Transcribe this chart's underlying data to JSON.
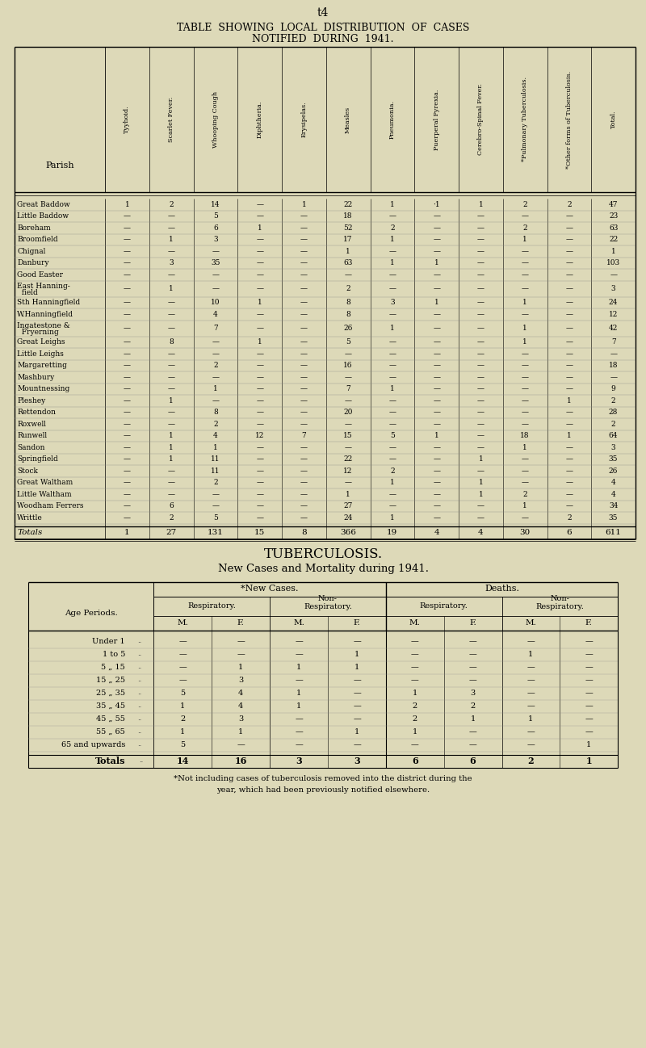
{
  "bg_color": "#ddd9b8",
  "page_number": "t4",
  "title1": "TABLE  SHOWING  LOCAL  DISTRIBUTION  OF  CASES",
  "title2": "NOTIFIED  DURING  1941.",
  "tb_title1": "TUBERCULOSIS.",
  "tb_title2": "New Cases and Mortality during 1941.",
  "footnote1": "*Not including cases of tuberculosis removed into the district during the",
  "footnote2": "year, which had been previously notified elsewhere.",
  "col_headers": [
    "Tyyhoid.",
    "Scarlet Fever.",
    "Whooping Cough",
    "Diphtheria.",
    "Erysipelas.",
    "Measles",
    "Pneumonia.",
    "Puerperal Pyrexia.",
    "Cerebro-Spinal Fever.",
    "*Pulmonary Tuberculosis.",
    "*Other forms of Tuberculosis.",
    "Total."
  ],
  "main_rows": [
    [
      "Great Baddow",
      "1",
      "2",
      "14",
      "—",
      "1",
      "22",
      "1",
      "·1",
      "1",
      "2",
      "2",
      "47"
    ],
    [
      "Little Baddow",
      "—",
      "—",
      "5",
      "—",
      "—",
      "18",
      "—",
      "—",
      "—",
      "—",
      "—",
      "23"
    ],
    [
      "Boreham",
      "—",
      "—",
      "6",
      "1",
      "—",
      "52",
      "2",
      "—",
      "—",
      "2",
      "—",
      "63"
    ],
    [
      "Broomfield",
      "—",
      "1",
      "3",
      "—",
      "—",
      "17",
      "1",
      "—",
      "—",
      "1",
      "—",
      "22"
    ],
    [
      "Chignal",
      "—",
      "—",
      "—",
      "—",
      "—",
      "1",
      "—",
      "—",
      "—",
      "—",
      "—",
      "1"
    ],
    [
      "Danbury",
      "—",
      "3",
      "35",
      "—",
      "—",
      "63",
      "1",
      "1",
      "—",
      "—",
      "—",
      "103"
    ],
    [
      "Good Easter",
      "—",
      "—",
      "—",
      "—",
      "—",
      "—",
      "—",
      "—",
      "—",
      "—",
      "—",
      "—"
    ],
    [
      "East Hanning-",
      "—",
      "1",
      "—",
      "—",
      "—",
      "2",
      "—",
      "—",
      "—",
      "—",
      "—",
      "3"
    ],
    [
      "Sth Hanningfield",
      "—",
      "—",
      "10",
      "1",
      "—",
      "8",
      "3",
      "1",
      "—",
      "1",
      "—",
      "24"
    ],
    [
      "W.Hanningfield",
      "—",
      "—",
      "4",
      "—",
      "—",
      "8",
      "—",
      "—",
      "—",
      "—",
      "—",
      "12"
    ],
    [
      "Ingatestone &",
      "—",
      "—",
      "7",
      "—",
      "—",
      "26",
      "1",
      "—",
      "—",
      "1",
      "—",
      "42"
    ],
    [
      "Great Leighs",
      "—",
      "8",
      "—",
      "1",
      "—",
      "5",
      "—",
      "—",
      "—",
      "1",
      "—",
      "7"
    ],
    [
      "Little Leighs",
      "—",
      "—",
      "—",
      "—",
      "—",
      "—",
      "—",
      "—",
      "—",
      "—",
      "—",
      "—"
    ],
    [
      "Margaretting",
      "—",
      "—",
      "2",
      "—",
      "—",
      "16",
      "—",
      "—",
      "—",
      "—",
      "—",
      "18"
    ],
    [
      "Mashbury",
      "—",
      "—",
      "—",
      "—",
      "—",
      "—",
      "—",
      "—",
      "—",
      "—",
      "—",
      "—"
    ],
    [
      "Mountnessing",
      "—",
      "—",
      "1",
      "—",
      "—",
      "7",
      "1",
      "—",
      "—",
      "—",
      "—",
      "9"
    ],
    [
      "Pleshey",
      "—",
      "1",
      "—",
      "—",
      "—",
      "—",
      "—",
      "—",
      "—",
      "—",
      "1",
      "2"
    ],
    [
      "Rettendon",
      "—",
      "—",
      "8",
      "—",
      "—",
      "20",
      "—",
      "—",
      "—",
      "—",
      "—",
      "28"
    ],
    [
      "Roxwell",
      "—",
      "—",
      "2",
      "—",
      "—",
      "—",
      "—",
      "—",
      "—",
      "—",
      "—",
      "2"
    ],
    [
      "Runwell",
      "—",
      "1",
      "4",
      "12",
      "7",
      "15",
      "5",
      "1",
      "—",
      "18",
      "1",
      "64"
    ],
    [
      "Sandon",
      "—",
      "1",
      "1",
      "—",
      "—",
      "—",
      "—",
      "—",
      "—",
      "1",
      "—",
      "3"
    ],
    [
      "Springfield",
      "—",
      "1",
      "11",
      "—",
      "—",
      "22",
      "—",
      "—",
      "1",
      "—",
      "—",
      "35"
    ],
    [
      "Stock",
      "—",
      "—",
      "11",
      "—",
      "—",
      "12",
      "2",
      "—",
      "—",
      "—",
      "—",
      "26"
    ],
    [
      "Great Waltham",
      "—",
      "—",
      "2",
      "—",
      "—",
      "—",
      "1",
      "—",
      "1",
      "—",
      "—",
      "4"
    ],
    [
      "Little Waltham",
      "—",
      "—",
      "—",
      "—",
      "—",
      "1",
      "—",
      "—",
      "1",
      "2",
      "—",
      "4"
    ],
    [
      "Woodham Ferrers",
      "—",
      "6",
      "—",
      "—",
      "—",
      "27",
      "—",
      "—",
      "—",
      "1",
      "—",
      "34"
    ],
    [
      "Writtle",
      "—",
      "2",
      "5",
      "—",
      "—",
      "24",
      "1",
      "—",
      "—",
      "—",
      "2",
      "35"
    ]
  ],
  "multiline_extras": {
    "7": "  field",
    "10": "  Fryerning"
  },
  "totals_row": [
    "Totals",
    "1",
    "27",
    "131",
    "15",
    "8",
    "366",
    "19",
    "4",
    "4",
    "30",
    "6",
    "611"
  ],
  "tb_age_periods": [
    "Under 1",
    "1 to 5",
    "5 „ 15",
    "15 „ 25",
    "25 „ 35",
    "35 „ 45",
    "45 „ 55",
    "55 „ 65",
    "65 and upwards"
  ],
  "tb_data": [
    [
      "—",
      "—",
      "—",
      "—",
      "—",
      "—",
      "—",
      "—"
    ],
    [
      "—",
      "—",
      "—",
      "1",
      "—",
      "—",
      "1",
      "—"
    ],
    [
      "—",
      "1",
      "1",
      "1",
      "—",
      "—",
      "—",
      "—"
    ],
    [
      "—",
      "3",
      "—",
      "—",
      "—",
      "—",
      "—",
      "—"
    ],
    [
      "5",
      "4",
      "1",
      "—",
      "1",
      "3",
      "—",
      "—"
    ],
    [
      "1",
      "4",
      "1",
      "—",
      "2",
      "2",
      "—",
      "—"
    ],
    [
      "2",
      "3",
      "—",
      "—",
      "2",
      "1",
      "1",
      "—"
    ],
    [
      "1",
      "1",
      "—",
      "1",
      "1",
      "—",
      "—",
      "—"
    ],
    [
      "5",
      "—",
      "—",
      "—",
      "—",
      "—",
      "—",
      "1"
    ]
  ],
  "tb_totals": [
    "14",
    "16",
    "3",
    "3",
    "6",
    "6",
    "2",
    "1"
  ]
}
